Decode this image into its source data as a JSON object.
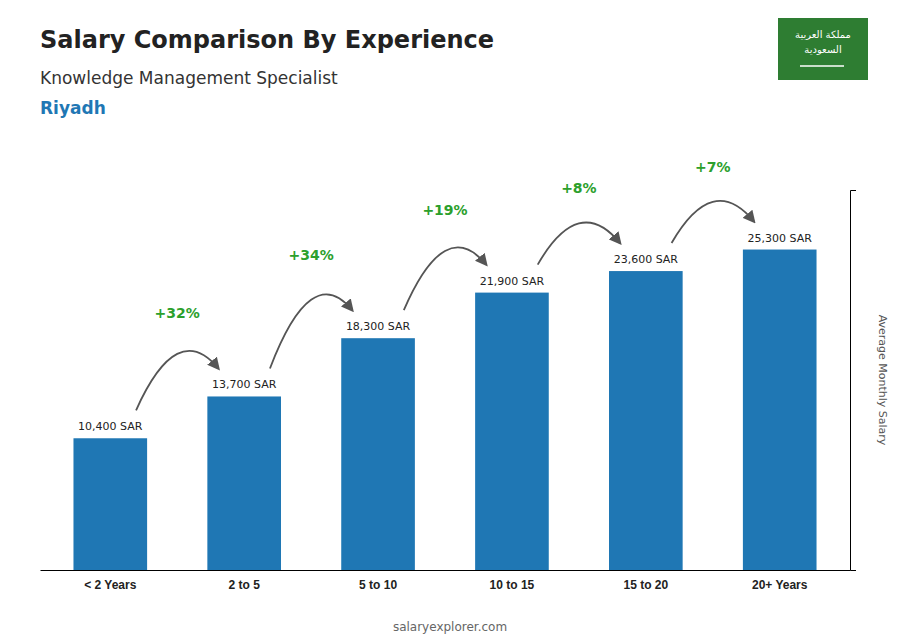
{
  "chart_data": {
    "type": "bar",
    "title": "Salary Comparison By Experience",
    "subtitle": "Knowledge Management Specialist",
    "city": "Riyadh",
    "categories": [
      "< 2 Years",
      "2 to 5",
      "5 to 10",
      "10 to 15",
      "15 to 20",
      "20+ Years"
    ],
    "values": [
      10400,
      13700,
      18300,
      21900,
      23600,
      25300
    ],
    "value_labels": [
      "10,400 SAR",
      "13,700 SAR",
      "18,300 SAR",
      "21,900 SAR",
      "23,600 SAR",
      "25,300 SAR"
    ],
    "data_labels": true,
    "annotations": [
      "+32%",
      "+34%",
      "+19%",
      "+8%",
      "+7%"
    ],
    "ylabel": "Average Monthly Salary",
    "footer": "salaryexplorer.com",
    "flag_text": [
      "مملكة العربية",
      "السعودية"
    ],
    "ylim": [
      0,
      30000
    ],
    "yticks": [],
    "tick_labels": "x",
    "grid": false
  }
}
